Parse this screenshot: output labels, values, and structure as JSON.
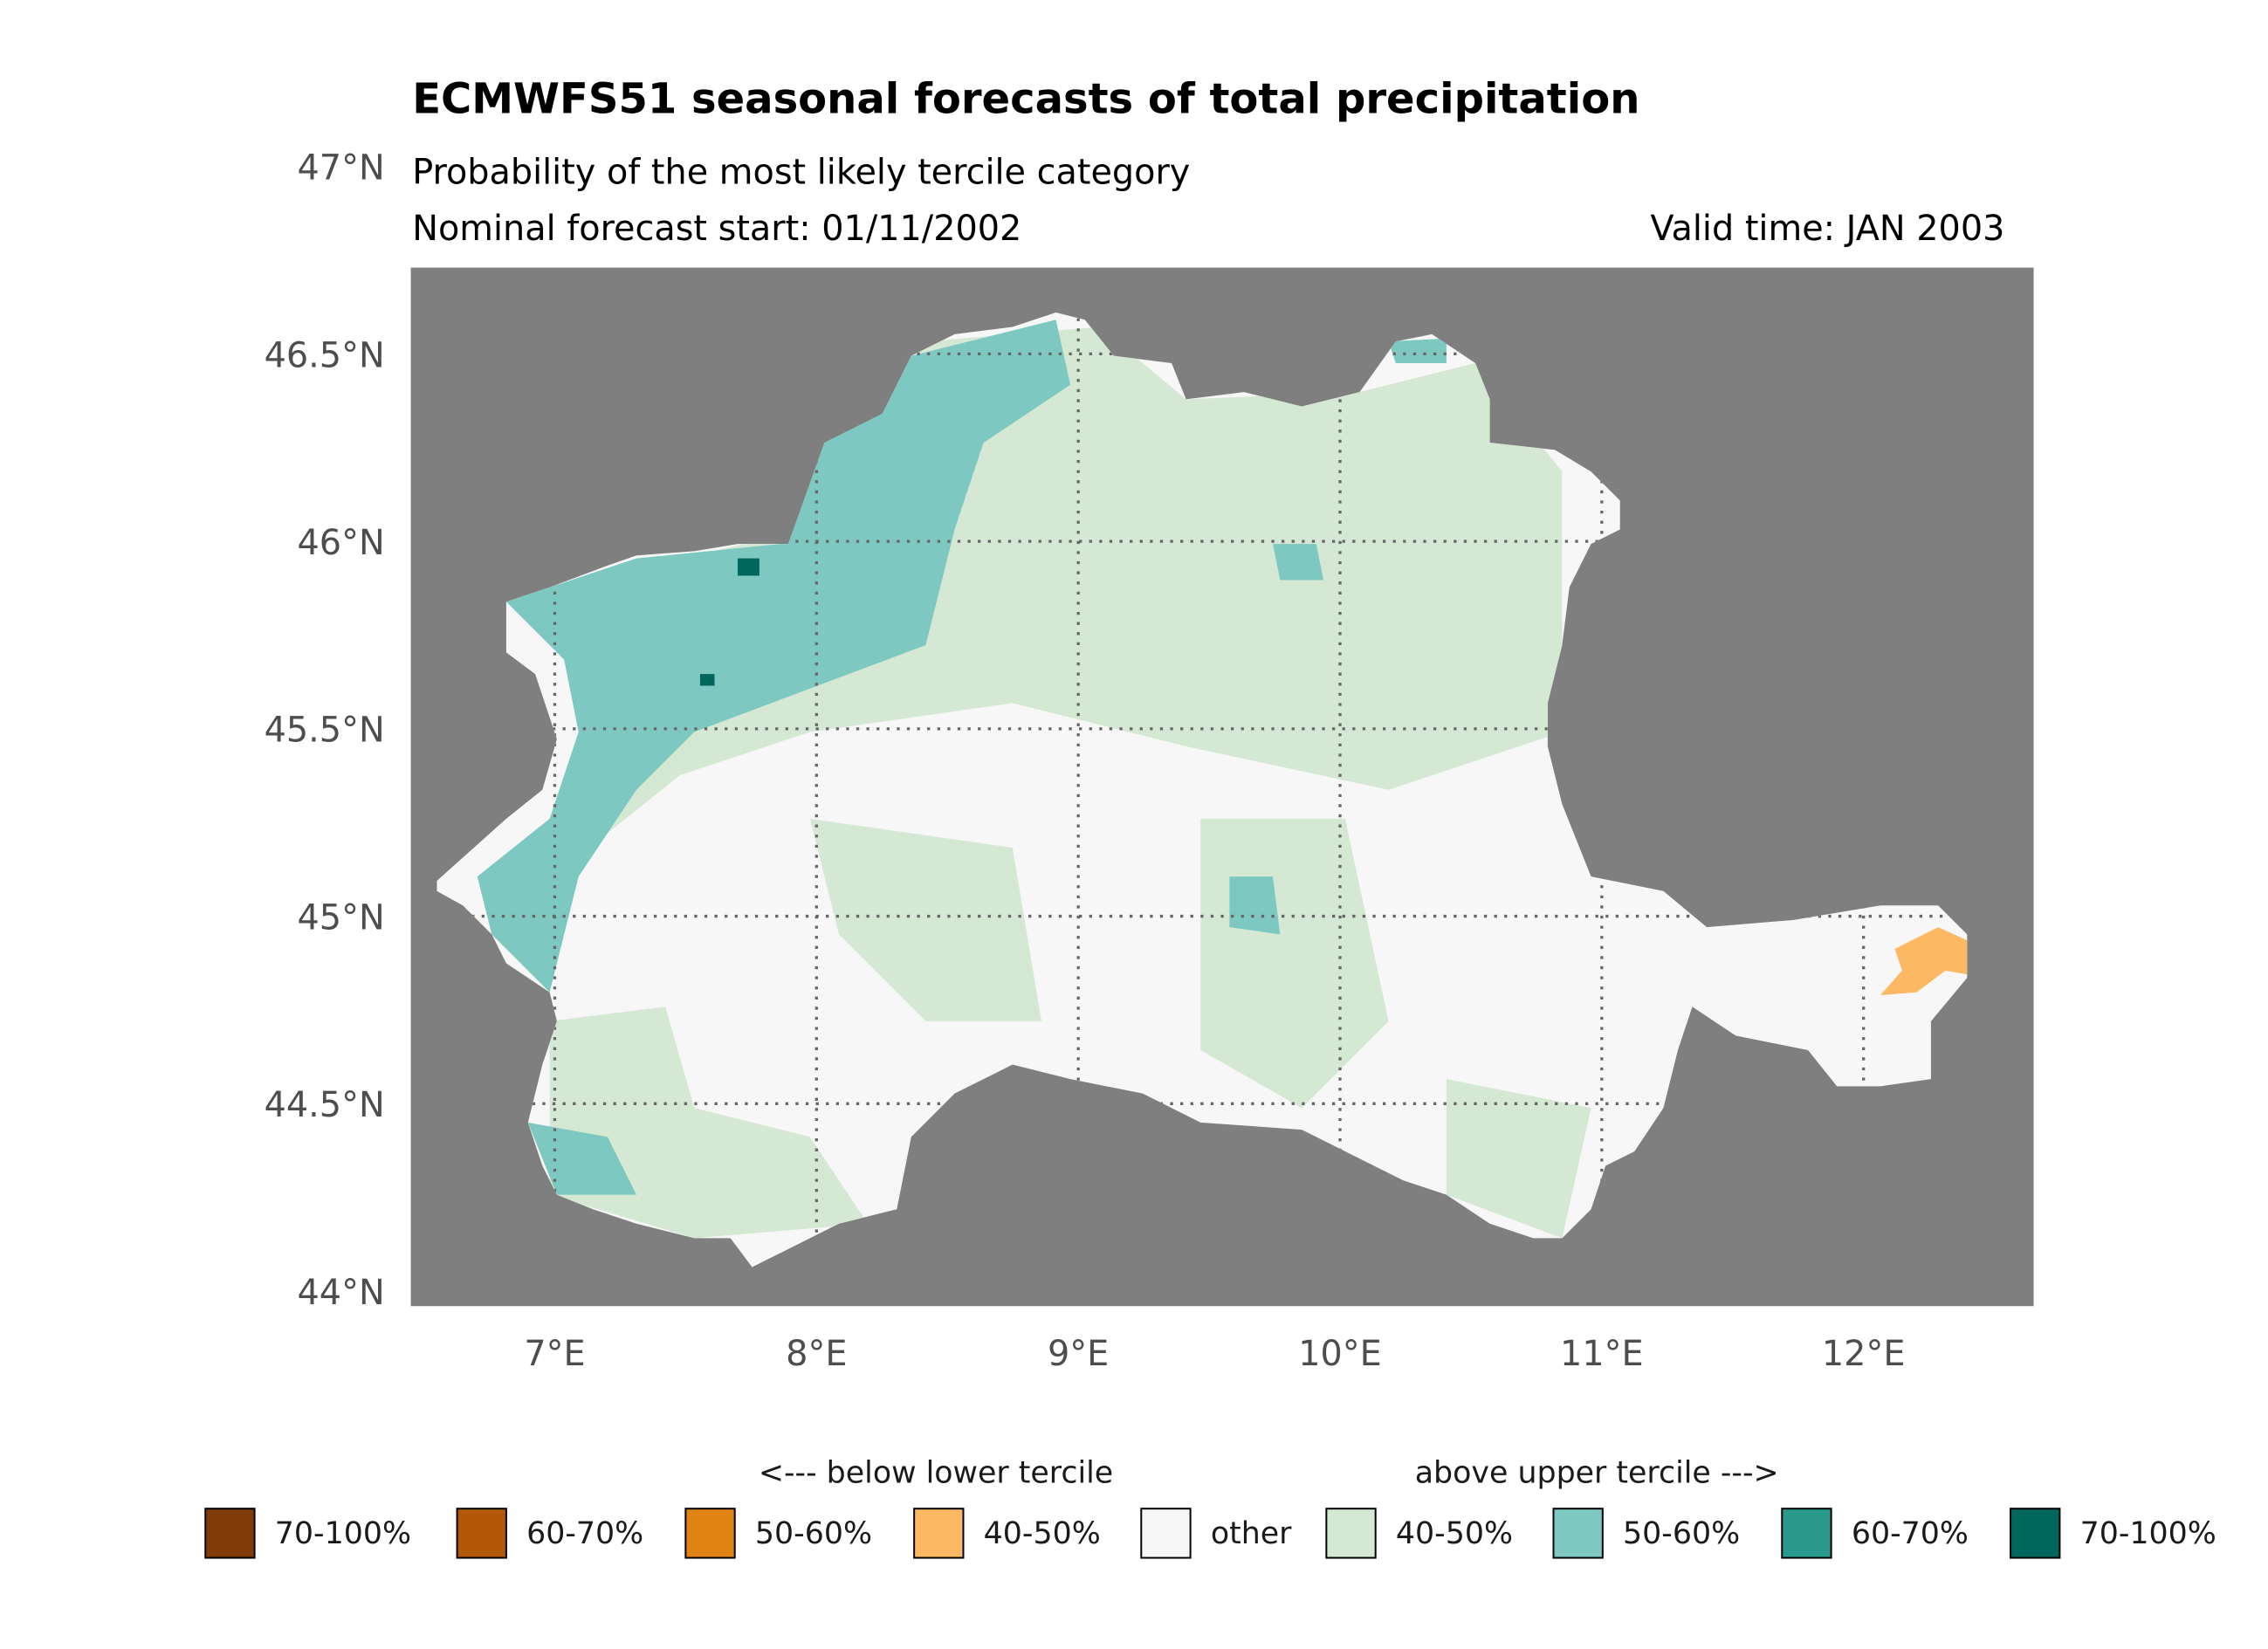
{
  "chart_data": {
    "type": "map",
    "title": "ECMWFS51 seasonal forecasts of total precipitation",
    "subtitle": "Probability of the most likely tercile category",
    "start_label": "Nominal forecast start: 01/11/2002",
    "valid_label": "Valid time: JAN 2003",
    "xlim": [
      6.45,
      12.65
    ],
    "ylim": [
      43.96,
      46.73
    ],
    "xticks": [
      {
        "value": 7,
        "label": "7°E"
      },
      {
        "value": 8,
        "label": "8°E"
      },
      {
        "value": 9,
        "label": "9°E"
      },
      {
        "value": 10,
        "label": "10°E"
      },
      {
        "value": 11,
        "label": "11°E"
      },
      {
        "value": 12,
        "label": "12°E"
      }
    ],
    "yticks": [
      {
        "value": 44,
        "label": "44°N"
      },
      {
        "value": 44.5,
        "label": "44.5°N"
      },
      {
        "value": 45,
        "label": "45°N"
      },
      {
        "value": 45.5,
        "label": "45.5°N"
      },
      {
        "value": 46,
        "label": "46°N"
      },
      {
        "value": 46.5,
        "label": "46.5°N"
      },
      {
        "value": 47,
        "label": "47°N"
      }
    ],
    "grid": true,
    "background": "#7f7f7f",
    "legend": {
      "below_label": "<--- below lower tercile",
      "above_label": "above upper tercile --->",
      "entries": [
        {
          "label": "70-100%",
          "color": "#7f3b08"
        },
        {
          "label": "60-70%",
          "color": "#b35806"
        },
        {
          "label": "50-60%",
          "color": "#e08214"
        },
        {
          "label": "40-50%",
          "color": "#fdb863"
        },
        {
          "label": "other",
          "color": "#f7f7f7"
        },
        {
          "label": "40-50%",
          "color": "#d5e8d4"
        },
        {
          "label": "50-60%",
          "color": "#7ec8c2"
        },
        {
          "label": "60-70%",
          "color": "#2a9a8f"
        },
        {
          "label": "70-100%",
          "color": "#01665e"
        }
      ]
    }
  }
}
